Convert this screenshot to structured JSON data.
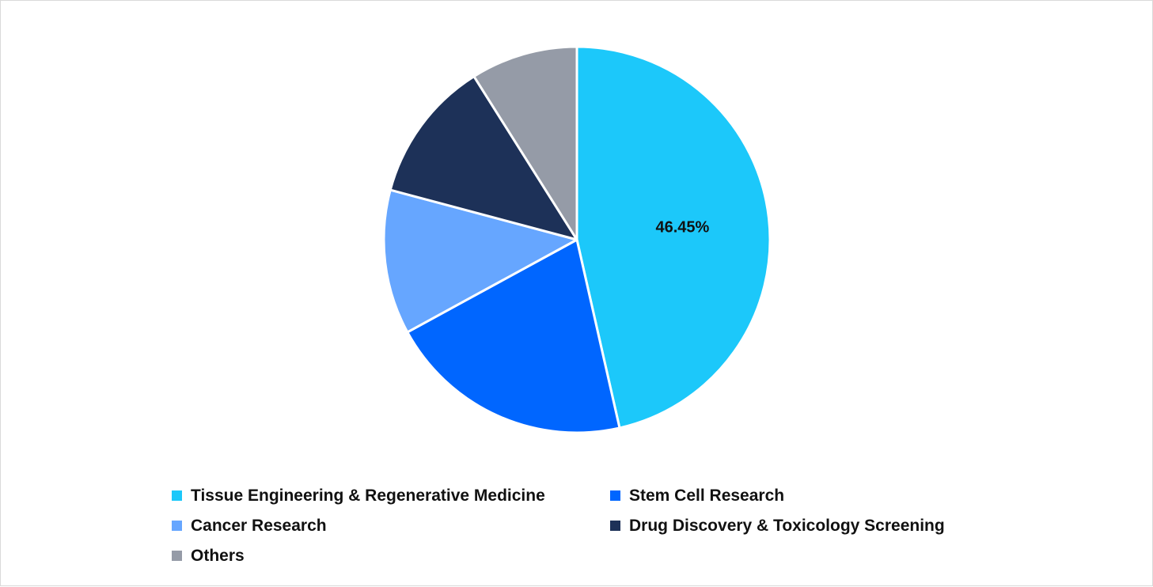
{
  "chart_data": {
    "type": "pie",
    "title": "",
    "slices": [
      {
        "label": "Tissue Engineering & Regenerative Medicine",
        "value": 46.45,
        "color": "#1CC8FA",
        "data_label": "46.45%"
      },
      {
        "label": "Stem Cell Research",
        "value": 20.6,
        "color": "#0066FF",
        "data_label": ""
      },
      {
        "label": "Cancer Research",
        "value": 12.1,
        "color": "#66A6FF",
        "data_label": ""
      },
      {
        "label": "Drug Discovery & Toxicology Screening",
        "value": 11.9,
        "color": "#1D3158",
        "data_label": ""
      },
      {
        "label": "Others",
        "value": 8.95,
        "color": "#959BA7",
        "data_label": ""
      }
    ],
    "start_angle": "12 o'clock",
    "direction": "clockwise",
    "legend_position": "bottom"
  }
}
